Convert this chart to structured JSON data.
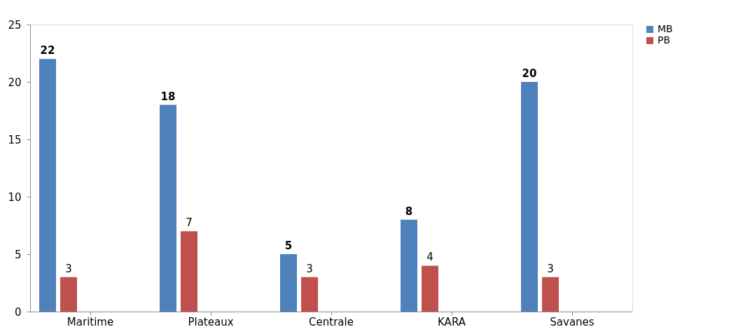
{
  "chart_data": {
    "type": "bar",
    "categories": [
      "Maritime",
      "Plateaux",
      "Centrale",
      "KARA",
      "Savanes"
    ],
    "series": [
      {
        "name": "MB",
        "color": "#4f81bd",
        "values": [
          22,
          18,
          5,
          8,
          20
        ]
      },
      {
        "name": "PB",
        "color": "#c0504d",
        "values": [
          3,
          7,
          3,
          4,
          3
        ]
      }
    ],
    "ylim": [
      0,
      25
    ],
    "yticks": [
      0,
      5,
      10,
      15,
      20,
      25
    ],
    "grid": false,
    "legend": "right",
    "data_labels": true
  }
}
